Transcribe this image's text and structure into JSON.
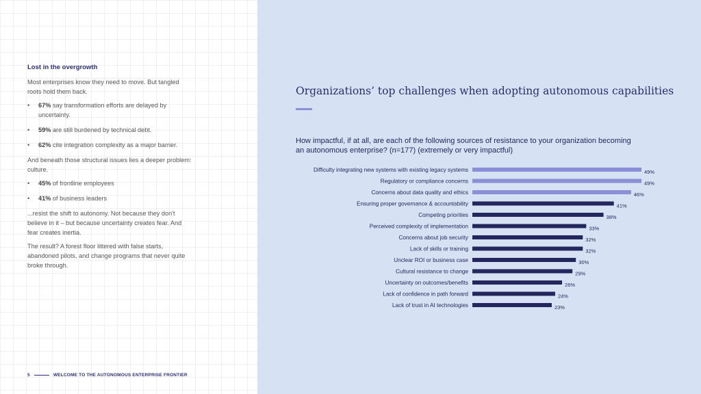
{
  "left": {
    "heading": "Lost in the overgrowth",
    "intro": "Most enterprises know they need to move. But tangled roots hold them back.",
    "bullets1": [
      {
        "bold": "67%",
        "text": " say transformation efforts are delayed by uncertainty."
      },
      {
        "bold": "59%",
        "text": " are still burdened by technical debt."
      },
      {
        "bold": "62%",
        "text": " cite integration complexity as a major barrier."
      }
    ],
    "middle": "And beneath those structural issues lies a deeper problem: culture.",
    "bullets2": [
      {
        "bold": "45%",
        "text": " of frontline employees"
      },
      {
        "bold": "41%",
        "text": " of business leaders"
      }
    ],
    "para3": "...resist the shift to autonomy. Not because they don't believe in it – but because uncertainty creates fear. And fear creates inertia.",
    "para4": "The result? A forest floor littered with false starts, abandoned pilots, and change programs that never quite broke through."
  },
  "footer": {
    "page": "5",
    "text": "WELCOME TO THE AUTONOMOUS ENTERPRISE FRONTIER"
  },
  "chart_data": {
    "type": "bar",
    "orientation": "horizontal",
    "title": "Organizations’ top challenges when adopting autonomous capabilities",
    "subtitle": "How impactful, if at all, are each of the following sources of resistance to your organization becoming an autonomous enterprise? (n=177) (extremely or very impactful)",
    "categories": [
      "Difficulty integrating new systems with existing legacy systems",
      "Regulatory or compliance concerns",
      "Concerns about data quality and ethics",
      "Ensuring proper governance & accountability",
      "Competing priorities",
      "Perceived complexity of implementation",
      "Concerns about job security",
      "Lack of skills or training",
      "Unclear ROI or business case",
      "Cultural resistance to change",
      "Uncertainty on outcomes/benefits",
      "Lack of confidence in path forward",
      "Lack of trust in AI technologies"
    ],
    "values": [
      49,
      49,
      46,
      41,
      38,
      33,
      32,
      32,
      30,
      29,
      26,
      24,
      23
    ],
    "value_labels": [
      "49%",
      "49%",
      "46%",
      "41%",
      "38%",
      "33%",
      "32%",
      "32%",
      "30%",
      "29%",
      "26%",
      "24%",
      "23%"
    ],
    "highlight_count": 3,
    "colors": {
      "highlight": "#8b8fd6",
      "default": "#23275e"
    },
    "xlim": [
      0,
      49
    ]
  }
}
